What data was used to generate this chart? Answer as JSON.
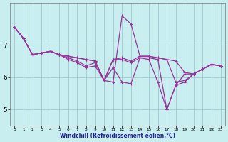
{
  "xlabel": "Windchill (Refroidissement éolien,°C)",
  "background_color": "#c8eef0",
  "grid_color": "#a0c8d0",
  "line_color": "#993399",
  "x_hours": [
    0,
    1,
    2,
    3,
    4,
    5,
    6,
    7,
    8,
    9,
    10,
    11,
    12,
    13,
    14,
    15,
    16,
    17,
    18,
    19,
    20,
    21,
    22,
    23
  ],
  "series1": [
    7.55,
    7.2,
    6.7,
    6.75,
    6.8,
    6.7,
    6.65,
    6.6,
    6.55,
    6.5,
    5.9,
    5.85,
    7.9,
    7.65,
    6.65,
    6.65,
    6.6,
    6.55,
    5.85,
    5.9,
    6.1,
    6.25,
    6.4,
    6.35
  ],
  "series2": [
    7.55,
    7.2,
    6.7,
    6.75,
    6.8,
    6.7,
    6.65,
    6.6,
    6.55,
    6.5,
    5.9,
    6.55,
    6.6,
    6.5,
    6.65,
    6.65,
    6.6,
    6.55,
    6.5,
    6.15,
    6.1,
    6.25,
    6.4,
    6.35
  ],
  "series3": [
    7.55,
    7.2,
    6.7,
    6.75,
    6.8,
    6.7,
    6.6,
    6.5,
    6.35,
    6.45,
    5.9,
    6.55,
    6.55,
    6.45,
    6.6,
    6.6,
    6.55,
    5.0,
    5.75,
    6.1,
    6.1,
    6.25,
    6.4,
    6.35
  ],
  "series4": [
    7.55,
    7.2,
    6.7,
    6.75,
    6.8,
    6.7,
    6.55,
    6.45,
    6.3,
    6.35,
    5.9,
    6.3,
    5.85,
    5.8,
    6.6,
    6.55,
    5.85,
    5.0,
    5.75,
    5.85,
    6.1,
    6.25,
    6.4,
    6.35
  ],
  "ylim": [
    4.5,
    8.3
  ],
  "yticks": [
    5,
    6,
    7
  ],
  "xlim": [
    -0.5,
    23.5
  ]
}
